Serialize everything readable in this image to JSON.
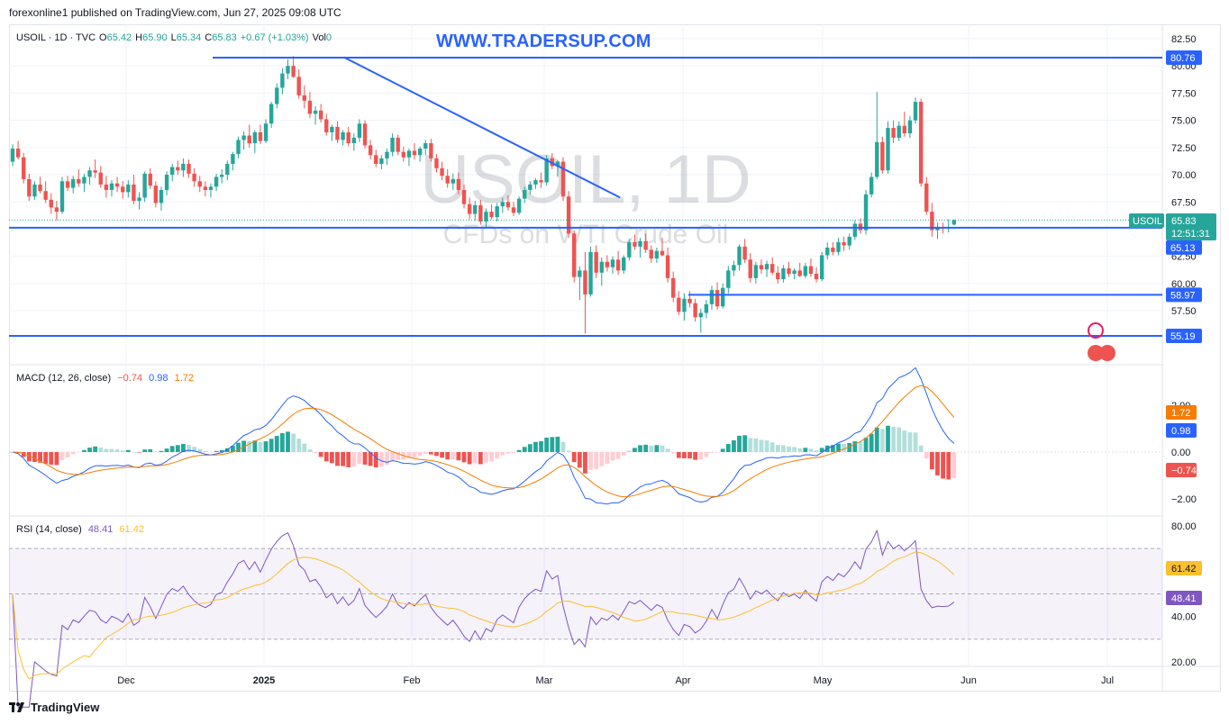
{
  "header": {
    "published_text": "forexonline1 published on TradingView.com, Jun 27, 2025 09:08 UTC"
  },
  "main_legend": {
    "symbol": "USOIL · 1D · TVC",
    "open_label": "O",
    "open": "65.42",
    "high_label": "H",
    "high": "65.90",
    "low_label": "L",
    "low": "65.34",
    "close_label": "C",
    "close": "65.83",
    "change": "+0.67 (+1.03%)",
    "vol_label": "Vol",
    "vol": "0"
  },
  "overlay_link": "WWW.TRADERSUP.COM",
  "watermark": {
    "symbol": "USOIL, 1D",
    "description": "CFDs on WTI Crude Oil"
  },
  "colors": {
    "up": "#26a69a",
    "down": "#ef5350",
    "line": "#2962ff",
    "macd_signal": "#f57c00",
    "rsi_line": "#7e57c2",
    "rsi_ma": "#fbc02d"
  },
  "price_axis": {
    "ticks": [
      "82.50",
      "80.00",
      "77.50",
      "75.00",
      "72.50",
      "70.00",
      "67.50",
      "65.00",
      "62.50",
      "60.00",
      "57.50"
    ]
  },
  "price_labels": {
    "level_80": "80.76",
    "symbol_tag": "USOIL",
    "current": "65.83",
    "countdown": "12:51:31",
    "level_65": "65.13",
    "level_59": "58.97",
    "level_55": "55.19"
  },
  "time_axis": {
    "labels": [
      "Dec",
      "2025",
      "Feb",
      "Mar",
      "Apr",
      "May",
      "Jun",
      "Jul"
    ]
  },
  "macd": {
    "title": "MACD (12, 26, close)",
    "hist": "−0.74",
    "macd": "0.98",
    "signal": "1.72",
    "axis": [
      "2.00",
      "0.00",
      "−2.00"
    ],
    "tag_signal": "1.72",
    "tag_macd": "0.98",
    "tag_hist": "−0.74"
  },
  "rsi": {
    "title": "RSI (14, close)",
    "rsi": "48.41",
    "ma": "61.42",
    "axis": [
      "80.00",
      "40.00",
      "20.00"
    ],
    "tag_ma": "61.42",
    "tag_rsi": "48.41"
  },
  "footer": {
    "brand": "TradingView"
  },
  "chart_data": {
    "type": "candlestick",
    "symbol": "USOIL",
    "timeframe": "1D",
    "y_range": [
      55.0,
      83.0
    ],
    "horizontal_levels": [
      80.76,
      65.13,
      58.97,
      55.19
    ],
    "trendline": {
      "from": {
        "x": "2025-01-15",
        "y": 80.8
      },
      "to": {
        "x": "2025-03-20",
        "y": 67.9
      }
    },
    "candles_ohlc": [
      [
        71.2,
        72.8,
        70.8,
        72.4
      ],
      [
        72.4,
        73.1,
        71.4,
        71.6
      ],
      [
        71.6,
        72.0,
        69.2,
        69.6
      ],
      [
        69.6,
        70.1,
        67.6,
        68.0
      ],
      [
        68.0,
        69.4,
        67.7,
        69.1
      ],
      [
        69.1,
        69.8,
        68.3,
        68.5
      ],
      [
        68.5,
        69.4,
        67.4,
        67.7
      ],
      [
        67.7,
        68.3,
        66.4,
        67.0
      ],
      [
        67.0,
        67.6,
        65.8,
        66.6
      ],
      [
        66.6,
        69.8,
        66.4,
        69.4
      ],
      [
        69.4,
        69.9,
        68.5,
        68.8
      ],
      [
        68.8,
        69.9,
        68.3,
        69.6
      ],
      [
        69.6,
        70.5,
        68.9,
        69.2
      ],
      [
        69.2,
        70.1,
        68.4,
        69.8
      ],
      [
        69.8,
        70.7,
        69.1,
        70.4
      ],
      [
        70.4,
        71.4,
        69.7,
        70.2
      ],
      [
        70.2,
        70.8,
        68.8,
        69.1
      ],
      [
        69.1,
        69.9,
        67.9,
        68.6
      ],
      [
        68.6,
        69.5,
        68.0,
        69.2
      ],
      [
        69.2,
        69.8,
        68.4,
        68.9
      ],
      [
        68.9,
        69.4,
        67.8,
        68.4
      ],
      [
        68.4,
        69.5,
        67.9,
        69.1
      ],
      [
        69.1,
        70.0,
        67.3,
        67.6
      ],
      [
        67.6,
        68.4,
        66.8,
        67.9
      ],
      [
        67.9,
        70.3,
        67.5,
        70.1
      ],
      [
        70.1,
        70.6,
        68.7,
        69.0
      ],
      [
        69.0,
        69.4,
        67.0,
        67.4
      ],
      [
        67.4,
        68.9,
        66.7,
        68.6
      ],
      [
        68.6,
        70.3,
        68.1,
        70.0
      ],
      [
        70.0,
        71.0,
        69.4,
        70.7
      ],
      [
        70.7,
        71.3,
        70.0,
        70.4
      ],
      [
        70.4,
        71.5,
        69.8,
        71.0
      ],
      [
        71.0,
        71.4,
        69.7,
        70.1
      ],
      [
        70.1,
        70.6,
        68.9,
        69.4
      ],
      [
        69.4,
        69.9,
        68.4,
        68.9
      ],
      [
        68.9,
        69.4,
        68.0,
        68.6
      ],
      [
        68.6,
        69.2,
        67.9,
        68.9
      ],
      [
        68.9,
        70.1,
        68.5,
        69.8
      ],
      [
        69.8,
        70.5,
        69.2,
        70.0
      ],
      [
        70.0,
        71.3,
        69.5,
        71.0
      ],
      [
        71.0,
        72.1,
        70.4,
        71.9
      ],
      [
        71.9,
        73.5,
        71.5,
        73.2
      ],
      [
        73.2,
        74.0,
        72.3,
        73.6
      ],
      [
        73.6,
        74.6,
        72.5,
        72.9
      ],
      [
        72.9,
        74.1,
        72.0,
        73.9
      ],
      [
        73.9,
        74.6,
        72.8,
        73.1
      ],
      [
        73.1,
        75.1,
        72.9,
        74.7
      ],
      [
        74.7,
        76.7,
        74.3,
        76.5
      ],
      [
        76.5,
        78.4,
        76.1,
        78.0
      ],
      [
        78.0,
        79.8,
        77.4,
        79.3
      ],
      [
        79.3,
        80.6,
        78.8,
        80.0
      ],
      [
        80.0,
        80.9,
        78.9,
        79.0
      ],
      [
        79.0,
        79.7,
        77.0,
        77.3
      ],
      [
        77.3,
        78.2,
        76.1,
        76.8
      ],
      [
        76.8,
        77.6,
        75.2,
        75.6
      ],
      [
        75.6,
        76.3,
        74.6,
        75.9
      ],
      [
        75.9,
        76.5,
        74.8,
        75.1
      ],
      [
        75.1,
        75.6,
        73.6,
        73.9
      ],
      [
        73.9,
        74.6,
        73.1,
        74.4
      ],
      [
        74.4,
        74.9,
        72.9,
        73.2
      ],
      [
        73.2,
        74.1,
        72.7,
        73.9
      ],
      [
        73.9,
        74.4,
        72.6,
        72.9
      ],
      [
        72.9,
        73.8,
        72.2,
        73.4
      ],
      [
        73.4,
        75.1,
        73.0,
        74.7
      ],
      [
        74.7,
        75.0,
        72.4,
        72.7
      ],
      [
        72.7,
        73.2,
        71.4,
        71.8
      ],
      [
        71.8,
        72.3,
        70.7,
        71.0
      ],
      [
        71.0,
        71.8,
        70.5,
        71.5
      ],
      [
        71.5,
        72.4,
        70.9,
        72.1
      ],
      [
        72.1,
        73.8,
        71.7,
        73.4
      ],
      [
        73.4,
        73.7,
        71.8,
        72.1
      ],
      [
        72.1,
        72.6,
        71.2,
        71.6
      ],
      [
        71.6,
        72.4,
        70.8,
        72.2
      ],
      [
        72.2,
        72.9,
        71.4,
        71.8
      ],
      [
        71.8,
        72.6,
        71.2,
        72.4
      ],
      [
        72.4,
        73.2,
        71.8,
        72.9
      ],
      [
        72.9,
        73.3,
        71.2,
        71.5
      ],
      [
        71.5,
        71.9,
        70.2,
        70.6
      ],
      [
        70.6,
        71.2,
        69.5,
        69.9
      ],
      [
        69.9,
        70.5,
        68.8,
        69.2
      ],
      [
        69.2,
        70.1,
        68.6,
        69.6
      ],
      [
        69.6,
        70.2,
        68.2,
        68.6
      ],
      [
        68.6,
        69.1,
        66.9,
        67.3
      ],
      [
        67.3,
        67.9,
        65.9,
        66.4
      ],
      [
        66.4,
        67.6,
        65.8,
        67.2
      ],
      [
        67.2,
        67.7,
        65.4,
        65.7
      ],
      [
        65.7,
        66.9,
        65.1,
        66.6
      ],
      [
        66.6,
        67.3,
        65.9,
        66.1
      ],
      [
        66.1,
        67.4,
        65.7,
        67.1
      ],
      [
        67.1,
        67.9,
        66.5,
        67.5
      ],
      [
        67.5,
        68.1,
        66.7,
        67.0
      ],
      [
        67.0,
        67.5,
        66.2,
        66.5
      ],
      [
        66.5,
        68.0,
        66.3,
        67.8
      ],
      [
        67.8,
        68.9,
        67.4,
        68.6
      ],
      [
        68.6,
        69.4,
        68.2,
        69.1
      ],
      [
        69.1,
        69.7,
        68.7,
        69.5
      ],
      [
        69.5,
        70.2,
        68.8,
        69.3
      ],
      [
        69.3,
        71.8,
        69.0,
        71.5
      ],
      [
        71.5,
        72.0,
        70.5,
        70.8
      ],
      [
        70.8,
        71.3,
        69.8,
        71.2
      ],
      [
        71.2,
        71.6,
        67.6,
        68.0
      ],
      [
        68.0,
        68.5,
        64.2,
        64.6
      ],
      [
        64.6,
        64.9,
        60.1,
        60.6
      ],
      [
        60.6,
        61.6,
        58.5,
        61.2
      ],
      [
        61.2,
        62.9,
        55.4,
        59.0
      ],
      [
        59.0,
        63.4,
        58.8,
        62.9
      ],
      [
        62.9,
        63.5,
        60.5,
        61.0
      ],
      [
        61.0,
        62.4,
        59.8,
        62.0
      ],
      [
        62.0,
        62.6,
        61.1,
        61.5
      ],
      [
        61.5,
        62.5,
        60.9,
        62.2
      ],
      [
        62.2,
        63.0,
        60.8,
        61.2
      ],
      [
        61.2,
        62.6,
        60.9,
        62.4
      ],
      [
        62.4,
        64.1,
        62.1,
        63.8
      ],
      [
        63.8,
        64.5,
        63.1,
        63.4
      ],
      [
        63.4,
        64.2,
        62.4,
        63.9
      ],
      [
        63.9,
        64.6,
        62.8,
        63.1
      ],
      [
        63.1,
        63.5,
        61.9,
        62.3
      ],
      [
        62.3,
        63.3,
        61.9,
        63.0
      ],
      [
        63.0,
        64.2,
        62.5,
        62.6
      ],
      [
        62.6,
        63.3,
        60.1,
        60.5
      ],
      [
        60.5,
        61.1,
        58.3,
        58.7
      ],
      [
        58.7,
        59.3,
        57.1,
        57.4
      ],
      [
        57.4,
        59.1,
        56.6,
        58.6
      ],
      [
        58.6,
        59.3,
        57.8,
        58.2
      ],
      [
        58.2,
        58.6,
        56.5,
        56.9
      ],
      [
        56.9,
        57.7,
        55.5,
        57.3
      ],
      [
        57.3,
        58.5,
        56.8,
        58.1
      ],
      [
        58.1,
        59.8,
        57.6,
        59.4
      ],
      [
        59.4,
        60.1,
        57.6,
        57.9
      ],
      [
        57.9,
        60.0,
        57.7,
        59.6
      ],
      [
        59.6,
        61.6,
        59.1,
        61.2
      ],
      [
        61.2,
        62.1,
        60.7,
        61.7
      ],
      [
        61.7,
        63.6,
        61.2,
        63.4
      ],
      [
        63.4,
        64.1,
        61.9,
        62.2
      ],
      [
        62.2,
        62.8,
        60.1,
        60.5
      ],
      [
        60.5,
        62.0,
        60.0,
        61.7
      ],
      [
        61.7,
        62.2,
        60.9,
        61.3
      ],
      [
        61.3,
        62.1,
        60.6,
        61.8
      ],
      [
        61.8,
        62.4,
        60.8,
        61.0
      ],
      [
        61.0,
        61.6,
        60.0,
        60.4
      ],
      [
        60.4,
        61.7,
        60.1,
        61.4
      ],
      [
        61.4,
        62.0,
        60.6,
        60.9
      ],
      [
        60.9,
        61.4,
        60.4,
        61.2
      ],
      [
        61.2,
        61.9,
        60.6,
        60.7
      ],
      [
        60.7,
        61.9,
        60.5,
        61.6
      ],
      [
        61.6,
        62.3,
        60.6,
        60.9
      ],
      [
        60.9,
        61.5,
        60.1,
        60.4
      ],
      [
        60.4,
        62.9,
        60.2,
        62.6
      ],
      [
        62.6,
        63.8,
        62.2,
        63.3
      ],
      [
        63.3,
        63.8,
        62.6,
        62.9
      ],
      [
        62.9,
        64.2,
        62.6,
        63.8
      ],
      [
        63.8,
        64.3,
        63.0,
        63.5
      ],
      [
        63.5,
        64.6,
        63.1,
        64.3
      ],
      [
        64.3,
        65.8,
        64.0,
        65.5
      ],
      [
        65.5,
        66.0,
        64.6,
        64.9
      ],
      [
        64.9,
        68.6,
        64.5,
        68.2
      ],
      [
        68.2,
        70.2,
        67.9,
        69.8
      ],
      [
        69.8,
        77.6,
        69.6,
        73.0
      ],
      [
        73.0,
        73.5,
        70.1,
        70.4
      ],
      [
        70.4,
        74.9,
        70.1,
        74.3
      ],
      [
        74.3,
        75.0,
        72.9,
        73.4
      ],
      [
        73.4,
        74.9,
        73.1,
        74.5
      ],
      [
        74.5,
        75.8,
        73.5,
        73.8
      ],
      [
        73.8,
        75.4,
        73.4,
        75.0
      ],
      [
        75.0,
        77.1,
        74.7,
        76.7
      ],
      [
        76.7,
        77.0,
        68.9,
        69.2
      ],
      [
        69.2,
        69.8,
        66.3,
        66.6
      ],
      [
        66.6,
        67.4,
        64.3,
        64.9
      ],
      [
        64.9,
        65.6,
        64.1,
        65.2
      ],
      [
        65.2,
        65.6,
        64.6,
        65.1
      ],
      [
        65.1,
        65.9,
        64.7,
        65.2
      ],
      [
        65.42,
        65.9,
        65.34,
        65.83
      ]
    ],
    "macd": {
      "macd": 0.98,
      "signal": 1.72,
      "histogram": -0.74,
      "y_range": [
        -2.8,
        3.2
      ]
    },
    "rsi": {
      "rsi": 48.41,
      "ma": 61.42,
      "bands": [
        70,
        50,
        30
      ],
      "y_range": [
        18,
        82
      ]
    },
    "x_axis_labels": [
      "Dec",
      "2025",
      "Feb",
      "Mar",
      "Apr",
      "May",
      "Jun",
      "Jul"
    ]
  }
}
